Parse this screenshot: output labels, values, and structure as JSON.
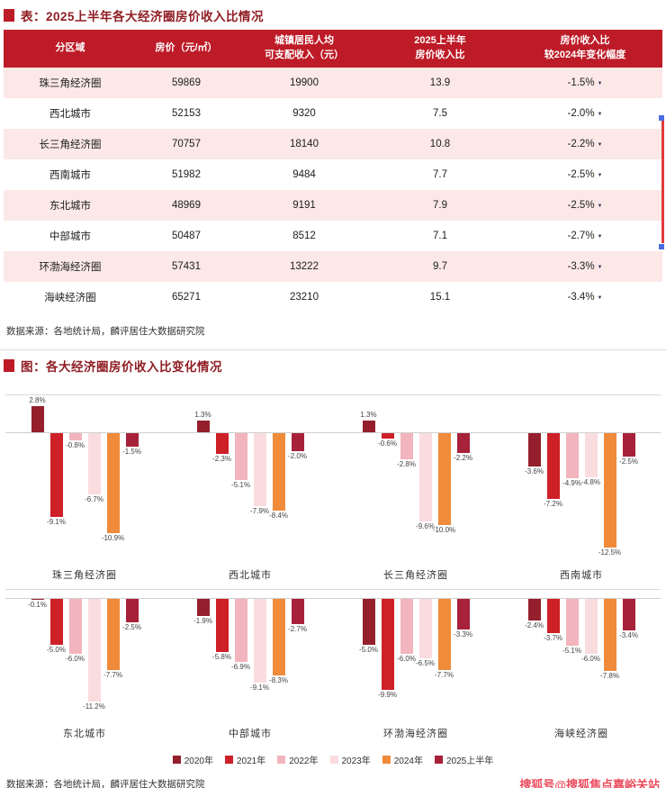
{
  "table_section": {
    "title": "表：2025上半年各大经济圈房价收入比情况",
    "headers": [
      {
        "lines": [
          "分区域"
        ]
      },
      {
        "lines": [
          "房价（元/㎡）"
        ]
      },
      {
        "lines": [
          "城镇居民人均",
          "可支配收入（元）"
        ]
      },
      {
        "lines": [
          "2025上半年",
          "房价收入比"
        ]
      },
      {
        "lines": [
          "房价收入比",
          "较2024年变化幅度"
        ]
      }
    ],
    "rows": [
      {
        "region": "珠三角经济圈",
        "price": "59869",
        "income": "19900",
        "ratio": "13.9",
        "change": "-1.5%"
      },
      {
        "region": "西北城市",
        "price": "52153",
        "income": "9320",
        "ratio": "7.5",
        "change": "-2.0%"
      },
      {
        "region": "长三角经济圈",
        "price": "70757",
        "income": "18140",
        "ratio": "10.8",
        "change": "-2.2%"
      },
      {
        "region": "西南城市",
        "price": "51982",
        "income": "9484",
        "ratio": "7.7",
        "change": "-2.5%"
      },
      {
        "region": "东北城市",
        "price": "48969",
        "income": "9191",
        "ratio": "7.9",
        "change": "-2.5%"
      },
      {
        "region": "中部城市",
        "price": "50487",
        "income": "8512",
        "ratio": "7.1",
        "change": "-2.7%"
      },
      {
        "region": "环渤海经济圈",
        "price": "57431",
        "income": "13222",
        "ratio": "9.7",
        "change": "-3.3%"
      },
      {
        "region": "海峡经济圈",
        "price": "65271",
        "income": "23210",
        "ratio": "15.1",
        "change": "-3.4%"
      }
    ],
    "source": "数据来源：各地统计局，麟评居住大数据研究院"
  },
  "chart_section": {
    "title": "图：各大经济圈房价收入比变化情况",
    "source": "数据来源：各地统计局，麟评居住大数据研究院"
  },
  "chart_data": {
    "type": "bar",
    "title": "各大经济圈房价收入比变化情况",
    "unit": "%",
    "value_labels": true,
    "legend_position": "bottom",
    "grid": false,
    "series_names": [
      "2020年",
      "2021年",
      "2022年",
      "2023年",
      "2024年",
      "2025上半年"
    ],
    "series_colors": [
      "#951f2d",
      "#cd2027",
      "#f2b5bd",
      "#fadcdf",
      "#ef8b3b",
      "#a8213a"
    ],
    "groups": [
      {
        "name": "珠三角经济圈",
        "values": [
          2.8,
          -9.1,
          -0.8,
          -6.7,
          -10.9,
          -1.5
        ],
        "labels": [
          "2.8%",
          "-9.1%",
          "-0.8%",
          "-6.7%",
          "-10.9%",
          "-1.5%"
        ]
      },
      {
        "name": "西北城市",
        "values": [
          1.3,
          -2.3,
          -5.1,
          -7.9,
          -8.4,
          -2.0
        ],
        "labels": [
          "1.3%",
          "-2.3%",
          "-5.1%",
          "-7.9%",
          "-8.4%",
          "-2.0%"
        ]
      },
      {
        "name": "长三角经济圈",
        "values": [
          1.3,
          -0.6,
          -2.8,
          -9.6,
          -10.0,
          -2.2
        ],
        "labels": [
          "1.3%",
          "-0.6%",
          "-2.8%",
          "-9.6%",
          "-10.0%",
          "-2.2%"
        ]
      },
      {
        "name": "西南城市",
        "values": [
          -3.6,
          -7.2,
          -4.9,
          -4.8,
          -12.5,
          -2.5
        ],
        "labels": [
          "-3.6%",
          "-7.2%",
          "-4.9%",
          "-4.8%",
          "-12.5%",
          "-2.5%"
        ]
      },
      {
        "name": "东北城市",
        "values": [
          -0.1,
          -5.0,
          -6.0,
          -11.2,
          -7.7,
          -2.5
        ],
        "labels": [
          "-0.1%",
          "-5.0%",
          "-6.0%",
          "-11.2%",
          "-7.7%",
          "-2.5%"
        ]
      },
      {
        "name": "中部城市",
        "values": [
          -1.9,
          -5.8,
          -6.9,
          -9.1,
          -8.3,
          -2.7
        ],
        "labels": [
          "-1.9%",
          "-5.8%",
          "-6.9%",
          "-9.1%",
          "-8.3%",
          "-2.7%"
        ]
      },
      {
        "name": "环渤海经济圈",
        "values": [
          -5.0,
          -9.9,
          -6.0,
          -6.5,
          -7.7,
          -3.3
        ],
        "labels": [
          "-5.0%",
          "-9.9%",
          "-6.0%",
          "-6.5%",
          "-7.7%",
          "-3.3%"
        ]
      },
      {
        "name": "海峡经济圈",
        "values": [
          -2.4,
          -3.7,
          -5.1,
          -6.0,
          -7.8,
          -3.4
        ],
        "labels": [
          "-2.4%",
          "-3.7%",
          "-5.1%",
          "-6.0%",
          "-7.8%",
          "-3.4%"
        ]
      }
    ]
  },
  "icons": {
    "decrease_arrow": "▼"
  },
  "watermark": "搜狐号@搜狐焦点嘉峪关站",
  "colors": {
    "header_bg": "#bd1b27",
    "section_title_text": "#8f1d23",
    "alt_row_bg": "#fbe8e7",
    "watermark": "#ea4a5c",
    "marker_red": "#e23b3b",
    "marker_blue": "#4a6be0"
  }
}
